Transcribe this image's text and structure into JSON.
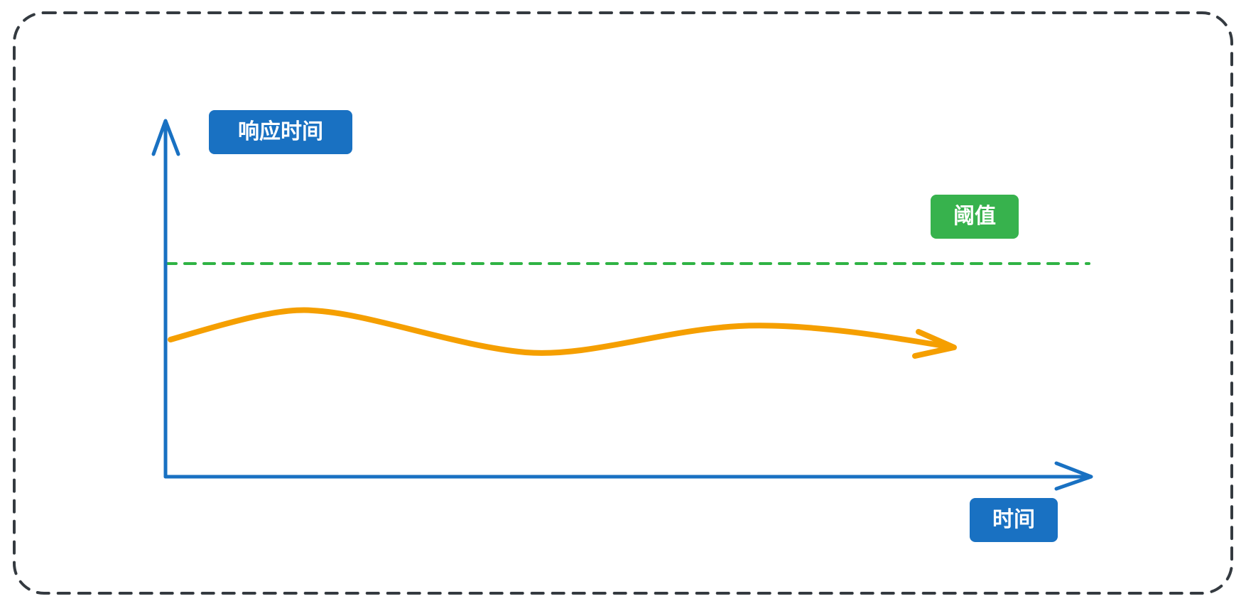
{
  "labels": {
    "y_axis": "响应时间",
    "threshold": "阈值",
    "x_axis": "时间"
  },
  "colors": {
    "frame": "#343a40",
    "axis": "#1971c2",
    "threshold": "#2fb344",
    "threshold_label_bg": "#37b24d",
    "curve": "#f59f00",
    "label_bg": "#1971c2",
    "label_text": "#ffffff"
  },
  "icons": {
    "y_axis_arrow": "arrow-up-icon",
    "x_axis_arrow": "arrow-right-icon",
    "curve_arrow": "arrowhead-icon"
  }
}
